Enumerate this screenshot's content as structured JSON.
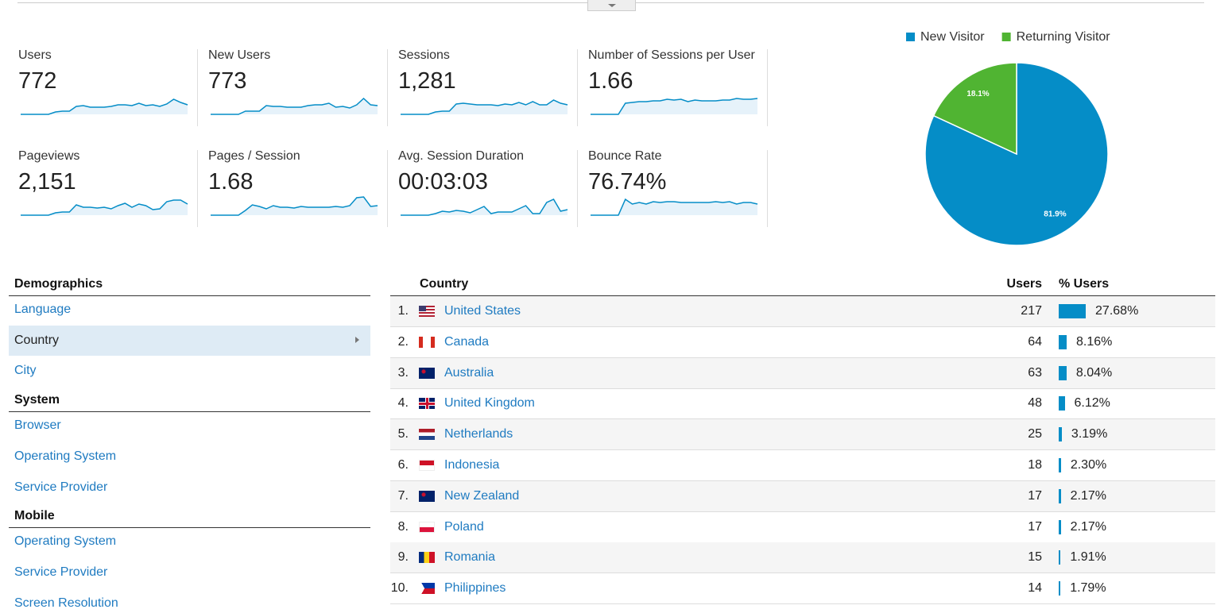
{
  "metrics": [
    {
      "label": "Users",
      "value": 772,
      "trend": [
        0,
        0,
        0,
        0,
        0,
        3,
        4,
        4,
        10,
        11,
        9,
        9,
        9,
        10,
        12,
        12,
        11,
        14,
        11,
        12,
        10,
        13,
        19,
        15,
        12
      ]
    },
    {
      "label": "New Users",
      "value": 773,
      "trend": [
        0,
        0,
        0,
        0,
        0,
        4,
        4,
        4,
        11,
        10,
        10,
        9,
        9,
        9,
        11,
        12,
        12,
        14,
        9,
        10,
        8,
        12,
        20,
        12,
        11
      ]
    },
    {
      "label": "Sessions",
      "value": "1,281",
      "trend": [
        0,
        0,
        0,
        0,
        0,
        3,
        4,
        4,
        13,
        14,
        13,
        12,
        12,
        12,
        11,
        13,
        12,
        15,
        12,
        16,
        12,
        12,
        18,
        14,
        12
      ]
    },
    {
      "label": "Number of Sessions per User",
      "value": 1.66,
      "trend": [
        0,
        0,
        0,
        0,
        0,
        14,
        15,
        16,
        16,
        17,
        17,
        19,
        18,
        19,
        16,
        18,
        17,
        17,
        17,
        18,
        18,
        20,
        19,
        19,
        20
      ]
    },
    {
      "label": "Pageviews",
      "value": "2,151",
      "trend": [
        0,
        0,
        0,
        0,
        0,
        3,
        4,
        4,
        13,
        10,
        10,
        9,
        10,
        8,
        12,
        15,
        10,
        14,
        12,
        7,
        8,
        17,
        19,
        19,
        14
      ]
    },
    {
      "label": "Pages / Session",
      "value": 1.68,
      "trend": [
        0,
        0,
        0,
        0,
        0,
        6,
        13,
        11,
        8,
        12,
        10,
        10,
        9,
        11,
        10,
        10,
        10,
        10,
        11,
        10,
        12,
        22,
        23,
        11,
        12
      ]
    },
    {
      "label": "Avg. Session Duration",
      "value": "00:03:03",
      "trend": [
        0,
        0,
        0,
        0,
        0,
        2,
        5,
        4,
        6,
        5,
        3,
        7,
        11,
        2,
        4,
        4,
        4,
        8,
        12,
        2,
        2,
        16,
        20,
        5,
        7
      ]
    },
    {
      "label": "Bounce Rate",
      "value": "76.74%",
      "trend": [
        0,
        0,
        0,
        0,
        0,
        20,
        14,
        16,
        14,
        17,
        16,
        17,
        17,
        16,
        16,
        16,
        16,
        16,
        17,
        16,
        17,
        14,
        16,
        16,
        14
      ]
    }
  ],
  "chart_data": {
    "type": "pie",
    "categories": [
      "New Visitor",
      "Returning Visitor"
    ],
    "values": [
      81.9,
      18.1
    ],
    "value_labels": [
      "81.9%",
      "18.1%"
    ],
    "colors": [
      "#058dc7",
      "#50b432"
    ]
  },
  "nav": [
    {
      "title": "Demographics",
      "items": [
        {
          "label": "Language"
        },
        {
          "label": "Country",
          "selected": true
        },
        {
          "label": "City"
        }
      ]
    },
    {
      "title": "System",
      "items": [
        {
          "label": "Browser"
        },
        {
          "label": "Operating System"
        },
        {
          "label": "Service Provider"
        }
      ]
    },
    {
      "title": "Mobile",
      "items": [
        {
          "label": "Operating System"
        },
        {
          "label": "Service Provider"
        },
        {
          "label": "Screen Resolution"
        }
      ]
    }
  ],
  "table": {
    "headers": [
      "Country",
      "Users",
      "% Users"
    ],
    "rows": [
      {
        "rank": "1.",
        "country": "United States",
        "users": 217,
        "share": 27.68,
        "share_label": "27.68%"
      },
      {
        "rank": "2.",
        "country": "Canada",
        "users": 64,
        "share": 8.16,
        "share_label": "8.16%"
      },
      {
        "rank": "3.",
        "country": "Australia",
        "users": 63,
        "share": 8.04,
        "share_label": "8.04%"
      },
      {
        "rank": "4.",
        "country": "United Kingdom",
        "users": 48,
        "share": 6.12,
        "share_label": "6.12%"
      },
      {
        "rank": "5.",
        "country": "Netherlands",
        "users": 25,
        "share": 3.19,
        "share_label": "3.19%"
      },
      {
        "rank": "6.",
        "country": "Indonesia",
        "users": 18,
        "share": 2.3,
        "share_label": "2.30%"
      },
      {
        "rank": "7.",
        "country": "New Zealand",
        "users": 17,
        "share": 2.17,
        "share_label": "2.17%"
      },
      {
        "rank": "8.",
        "country": "Poland",
        "users": 17,
        "share": 2.17,
        "share_label": "2.17%"
      },
      {
        "rank": "9.",
        "country": "Romania",
        "users": 15,
        "share": 1.91,
        "share_label": "1.91%"
      },
      {
        "rank": "10.",
        "country": "Philippines",
        "users": 14,
        "share": 1.79,
        "share_label": "1.79%"
      }
    ]
  }
}
